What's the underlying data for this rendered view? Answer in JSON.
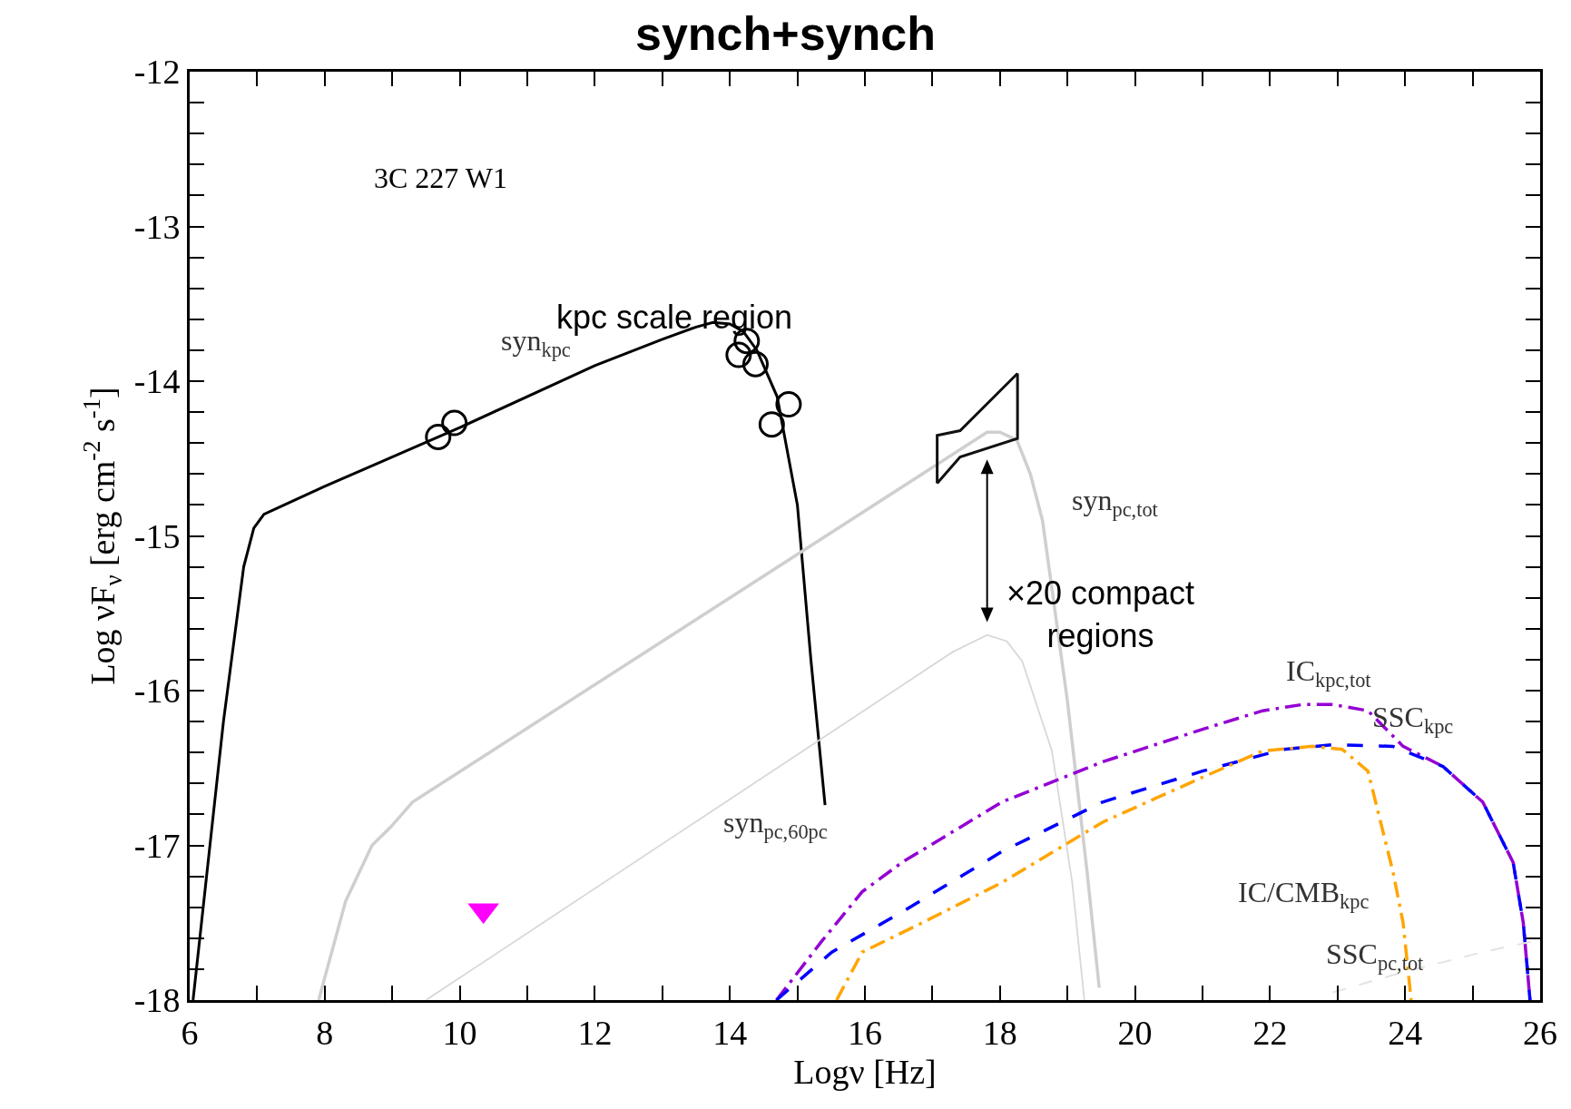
{
  "chart_data": {
    "type": "line",
    "title": "synch+synch",
    "xlabel": "Logν [Hz]",
    "ylabel": "Log νF$_{ν}$ [erg cm$^{-2}$ s$^{-1}$]",
    "annotations": [
      "3C 227 W1",
      "kpc scale region",
      "×20 compact regions"
    ],
    "xlim": [
      6,
      26
    ],
    "ylim": [
      -18,
      -12
    ],
    "xticks": [
      6,
      {
        "value": 7,
        "label": null
      },
      8,
      {
        "value": 9,
        "label": null
      },
      10,
      {
        "value": 11,
        "label": null
      },
      12,
      {
        "value": 13,
        "label": null
      },
      14,
      {
        "value": 15,
        "label": null
      },
      16,
      {
        "value": 17,
        "label": null
      },
      18,
      {
        "value": 19,
        "label": null
      },
      20,
      {
        "value": 21,
        "label": null
      },
      22,
      {
        "value": 23,
        "label": null
      },
      24,
      {
        "value": 25,
        "label": null
      },
      26
    ],
    "yticks": [
      -18,
      {
        "value": -17.8,
        "label": null
      },
      {
        "value": -17.6,
        "label": null
      },
      {
        "value": -17.4,
        "label": null
      },
      {
        "value": -17.2,
        "label": null
      },
      -17,
      {
        "value": -16.8,
        "label": null
      },
      {
        "value": -16.6,
        "label": null
      },
      {
        "value": -16.4,
        "label": null
      },
      {
        "value": -16.2,
        "label": null
      },
      -16,
      {
        "value": -15.8,
        "label": null
      },
      {
        "value": -15.6,
        "label": null
      },
      {
        "value": -15.4,
        "label": null
      },
      {
        "value": -15.2,
        "label": null
      },
      -15,
      {
        "value": -14.8,
        "label": null
      },
      {
        "value": -14.6,
        "label": null
      },
      {
        "value": -14.4,
        "label": null
      },
      {
        "value": -14.2,
        "label": null
      },
      -14,
      {
        "value": -13.8,
        "label": null
      },
      {
        "value": -13.6,
        "label": null
      },
      {
        "value": -13.4,
        "label": null
      },
      {
        "value": -13.2,
        "label": null
      },
      -13,
      {
        "value": -12.8,
        "label": null
      },
      {
        "value": -12.6,
        "label": null
      },
      {
        "value": -12.4,
        "label": null
      },
      {
        "value": -12.2,
        "label": null
      },
      -12
    ],
    "grid": false,
    "series": [
      {
        "name": "syn$_{kpc}$",
        "color": "#000000",
        "line_style": "solid",
        "x": [
          6.05,
          6.5,
          6.8,
          6.95,
          7.1,
          7.4,
          8,
          10,
          12,
          13.0,
          13.5,
          13.75,
          14.0,
          14.2,
          14.4,
          14.7,
          15.0,
          15.2,
          15.41
        ],
        "values": [
          -18,
          -16.2,
          -15.2,
          -14.95,
          -14.86,
          -14.8,
          -14.68,
          -14.3,
          -13.9,
          -13.73,
          -13.65,
          -13.62,
          -13.63,
          -13.68,
          -13.8,
          -14.1,
          -14.8,
          -15.8,
          -16.74
        ]
      },
      {
        "type": "scatter",
        "color": "#000000",
        "marker": "circle",
        "x": [
          9.68,
          9.92,
          14.13,
          14.25,
          14.38,
          14.62,
          14.87
        ],
        "values": [
          -14.36,
          -14.27,
          -13.83,
          -13.74,
          -13.89,
          -14.28,
          -14.15
        ]
      },
      {
        "type": "scatter",
        "color": "#ff00ff",
        "marker": "triangle",
        "x": [
          10.35
        ],
        "values": [
          -17.42
        ]
      },
      {
        "name": "syn$_{pc,tot}$",
        "color": "#cfcfcf",
        "line_style": "solid",
        "x": [
          7.91,
          8.31,
          8.7,
          8.98,
          9.3,
          17.81,
          18.0,
          18.25,
          18.45,
          18.63,
          19.0,
          19.29,
          19.47
        ],
        "values": [
          -18,
          -17.36,
          -17.0,
          -16.88,
          -16.72,
          -14.33,
          -14.33,
          -14.38,
          -14.6,
          -14.9,
          -16.07,
          -17.17,
          -17.92
        ]
      },
      {
        "name": "syn$_{pc,60pc}$",
        "color": "#d8d8d8",
        "line_style": "solid",
        "x": [
          9.5,
          17.3,
          17.81,
          18.1,
          18.33,
          18.77,
          19.07,
          19.25
        ],
        "values": [
          -18,
          -15.75,
          -15.64,
          -15.68,
          -15.81,
          -16.39,
          -17.24,
          -18
        ]
      },
      {
        "type": "line",
        "color": "#111111",
        "line_style": "solid",
        "x": [
          17.07,
          17.07,
          17.41,
          18.26
        ],
        "values": [
          -14.66,
          -14.35,
          -14.32,
          -13.95
        ]
      },
      {
        "type": "line",
        "color": "#111111",
        "line_style": "solid",
        "x": [
          17.07,
          17.41,
          18.26,
          18.26
        ],
        "values": [
          -14.66,
          -14.49,
          -14.37,
          -13.95
        ]
      },
      {
        "name": "IC$_{kpc,tot}$",
        "color": "#9400d3",
        "line_style": "dashdot",
        "x": [
          14.69,
          15.36,
          15.96,
          16.55,
          18.03,
          19.52,
          21.0,
          21.89,
          22.48,
          22.93,
          23.45,
          23.97,
          24.56,
          25.15,
          25.6,
          25.75,
          25.85
        ],
        "values": [
          -18,
          -17.62,
          -17.3,
          -17.11,
          -16.72,
          -16.46,
          -16.25,
          -16.13,
          -16.09,
          -16.09,
          -16.13,
          -16.36,
          -16.49,
          -16.72,
          -17.11,
          -17.5,
          -18
        ]
      },
      {
        "name": "SSC$_{kpc}$",
        "color": "#0000ff",
        "line_style": "dashed",
        "x": [
          14.69,
          15.51,
          16.55,
          18.03,
          19.52,
          21.0,
          22.19,
          22.93,
          23.82,
          24.56,
          25.15,
          25.6,
          25.75,
          25.85
        ],
        "values": [
          -18,
          -17.69,
          -17.43,
          -17.04,
          -16.72,
          -16.52,
          -16.38,
          -16.35,
          -16.36,
          -16.49,
          -16.72,
          -17.11,
          -17.5,
          -18
        ]
      },
      {
        "name": "IC/CMB$_{kpc}$",
        "color": "#ffa500",
        "line_style": "dashdot",
        "x": [
          15.58,
          15.96,
          16.85,
          18.03,
          19.52,
          21.0,
          21.89,
          22.63,
          23.07,
          23.45,
          23.82,
          23.97,
          24.09
        ],
        "values": [
          -18,
          -17.69,
          -17.5,
          -17.24,
          -16.85,
          -16.56,
          -16.39,
          -16.36,
          -16.38,
          -16.52,
          -17.17,
          -17.5,
          -18
        ]
      },
      {
        "name": "SSC$_{pc,tot}$",
        "color": "#e3e3e3",
        "line_style": "dashed",
        "x": [
          22.93,
          23.97,
          25.15,
          26.0
        ],
        "values": [
          -17.95,
          -17.82,
          -17.69,
          -17.61
        ]
      }
    ]
  }
}
